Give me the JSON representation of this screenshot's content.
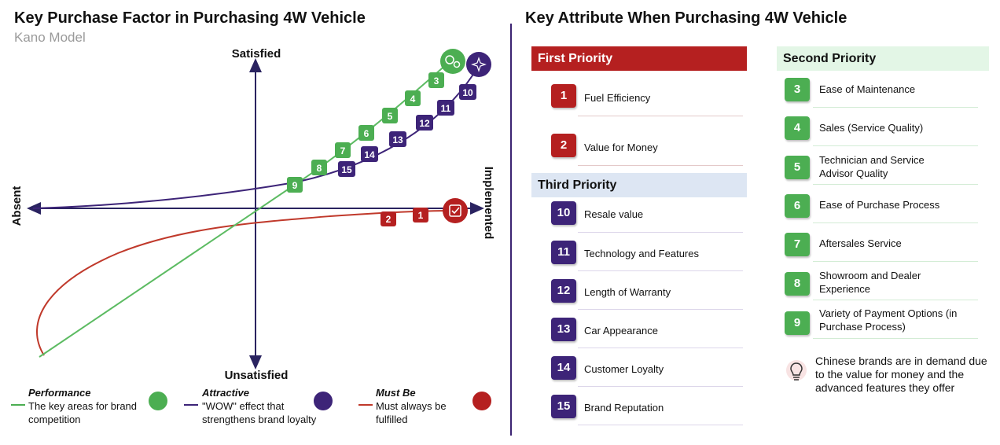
{
  "left_panel": {
    "title": "Key Purchase Factor in Purchasing 4W Vehicle",
    "subtitle": "Kano Model",
    "axis_labels": {
      "top": "Satisfied",
      "bottom": "Unsatisfied",
      "left": "Absent",
      "right": "Implemented"
    },
    "performance_badges": [
      "3",
      "4",
      "5",
      "6",
      "7",
      "8",
      "9"
    ],
    "attractive_badges": [
      "10",
      "11",
      "12",
      "13",
      "14",
      "15"
    ],
    "must_be_badges": [
      "1",
      "2"
    ],
    "legend": [
      {
        "title": "Performance",
        "text": "The key areas for brand competition",
        "color": "#4cae52",
        "icon": "gears-icon"
      },
      {
        "title": "Attractive",
        "text": "\"WOW\" effect that strengthens brand loyalty",
        "color": "#3d2478",
        "icon": "sparkle-hand-icon"
      },
      {
        "title": "Must Be",
        "text": "Must always be fulfilled",
        "color": "#c0392b",
        "icon": "checkbox-icon"
      }
    ]
  },
  "right_panel": {
    "title": "Key Attribute When Purchasing 4W Vehicle",
    "first_priority": {
      "header": "First Priority",
      "items": [
        {
          "num": "1",
          "label": "Fuel Efficiency"
        },
        {
          "num": "2",
          "label": "Value for Money"
        }
      ]
    },
    "third_priority": {
      "header": "Third Priority",
      "items": [
        {
          "num": "10",
          "label": "Resale value"
        },
        {
          "num": "11",
          "label": "Technology and Features"
        },
        {
          "num": "12",
          "label": "Length of Warranty"
        },
        {
          "num": "13",
          "label": "Car Appearance"
        },
        {
          "num": "14",
          "label": "Customer Loyalty"
        },
        {
          "num": "15",
          "label": "Brand Reputation"
        }
      ]
    },
    "second_priority": {
      "header": "Second Priority",
      "items": [
        {
          "num": "3",
          "label": "Ease of Maintenance"
        },
        {
          "num": "4",
          "label": "Sales (Service Quality)"
        },
        {
          "num": "5",
          "label": "Technician and Service Advisor Quality"
        },
        {
          "num": "6",
          "label": "Ease of Purchase Process"
        },
        {
          "num": "7",
          "label": "Aftersales Service"
        },
        {
          "num": "8",
          "label": "Showroom and Dealer Experience"
        },
        {
          "num": "9",
          "label": "Variety of Payment Options (in Purchase Process)"
        }
      ]
    },
    "note": {
      "icon": "lightbulb-icon",
      "text": "Chinese brands are in demand due to the value for money and the advanced features they offer"
    }
  },
  "colors": {
    "green": "#4cae52",
    "red": "#b52020",
    "purple": "#3d2478",
    "first_header_bg": "#b52020",
    "third_header_bg": "#dde6f3",
    "second_header_bg": "#e3f6e6"
  }
}
